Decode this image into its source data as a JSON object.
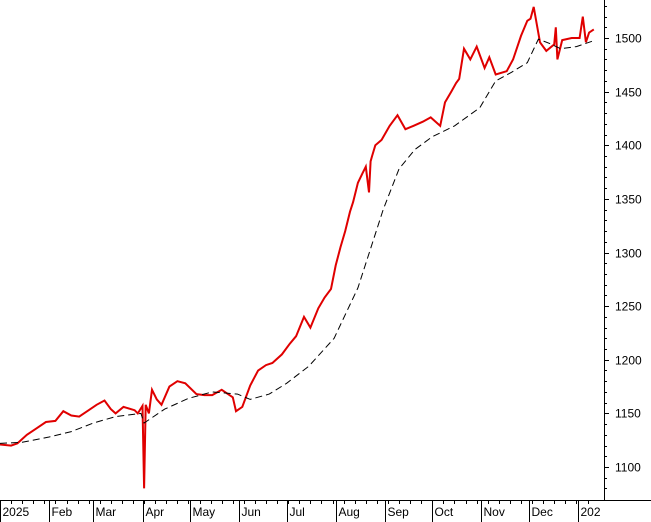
{
  "chart_data": {
    "type": "line",
    "title": "",
    "xlabel": "",
    "ylabel": "",
    "ylim": [
      1075,
      1535
    ],
    "x_range": [
      "2025-01-01",
      "2026-01-12"
    ],
    "y_ticks": [
      1100,
      1150,
      1200,
      1250,
      1300,
      1350,
      1400,
      1450,
      1500
    ],
    "x_ticks": [
      {
        "date": "2025-01-01",
        "label": "2025"
      },
      {
        "date": "2025-02-01",
        "label": "Feb"
      },
      {
        "date": "2025-03-01",
        "label": "Mar"
      },
      {
        "date": "2025-04-01",
        "label": "Apr"
      },
      {
        "date": "2025-05-01",
        "label": "May"
      },
      {
        "date": "2025-06-01",
        "label": "Jun"
      },
      {
        "date": "2025-07-01",
        "label": "Jul"
      },
      {
        "date": "2025-08-01",
        "label": "Aug"
      },
      {
        "date": "2025-09-01",
        "label": "Sep"
      },
      {
        "date": "2025-10-01",
        "label": "Oct"
      },
      {
        "date": "2025-11-01",
        "label": "Nov"
      },
      {
        "date": "2025-12-01",
        "label": "Dec"
      },
      {
        "date": "2026-01-01",
        "label": "202"
      }
    ],
    "grid": false,
    "legend": "none",
    "colors": {
      "price": "#e00000",
      "moving_average": "#000000"
    },
    "series": [
      {
        "style": "solid",
        "color": "#e00000",
        "x": [
          "2025-01-01",
          "2025-01-08",
          "2025-01-12",
          "2025-01-18",
          "2025-01-24",
          "2025-01-30",
          "2025-02-05",
          "2025-02-10",
          "2025-02-15",
          "2025-02-20",
          "2025-02-26",
          "2025-03-03",
          "2025-03-08",
          "2025-03-12",
          "2025-03-15",
          "2025-03-20",
          "2025-03-27",
          "2025-03-29",
          "2025-04-01",
          "2025-04-02",
          "2025-04-03",
          "2025-04-05",
          "2025-04-07",
          "2025-04-10",
          "2025-04-13",
          "2025-04-18",
          "2025-04-23",
          "2025-04-28",
          "2025-05-05",
          "2025-05-10",
          "2025-05-15",
          "2025-05-21",
          "2025-05-28",
          "2025-05-30",
          "2025-06-03",
          "2025-06-08",
          "2025-06-13",
          "2025-06-18",
          "2025-06-22",
          "2025-06-28",
          "2025-07-03",
          "2025-07-07",
          "2025-07-12",
          "2025-07-16",
          "2025-07-21",
          "2025-07-25",
          "2025-07-29",
          "2025-08-01",
          "2025-08-04",
          "2025-08-07",
          "2025-08-10",
          "2025-08-12",
          "2025-08-15",
          "2025-08-18",
          "2025-08-20",
          "2025-08-22",
          "2025-08-23",
          "2025-08-24",
          "2025-08-26",
          "2025-08-30",
          "2025-09-04",
          "2025-09-09",
          "2025-09-14",
          "2025-09-19",
          "2025-09-25",
          "2025-09-30",
          "2025-10-06",
          "2025-10-09",
          "2025-10-13",
          "2025-10-16",
          "2025-10-18",
          "2025-10-21",
          "2025-10-25",
          "2025-10-29",
          "2025-11-03",
          "2025-11-06",
          "2025-11-10",
          "2025-11-17",
          "2025-11-21",
          "2025-11-26",
          "2025-11-30",
          "2025-12-02",
          "2025-12-04",
          "2025-12-08",
          "2025-12-12",
          "2025-12-17",
          "2025-12-18",
          "2025-12-19",
          "2025-12-22",
          "2025-12-28",
          "2026-01-02",
          "2026-01-04",
          "2026-01-06",
          "2026-01-08",
          "2026-01-11"
        ],
        "y": [
          1121,
          1120,
          1122,
          1130,
          1136,
          1142,
          1143,
          1152,
          1148,
          1147,
          1153,
          1158,
          1162,
          1154,
          1150,
          1156,
          1153,
          1150,
          1157,
          1080,
          1158,
          1150,
          1172,
          1163,
          1158,
          1175,
          1180,
          1178,
          1168,
          1167,
          1167,
          1172,
          1165,
          1152,
          1156,
          1176,
          1190,
          1195,
          1197,
          1205,
          1215,
          1222,
          1240,
          1230,
          1248,
          1258,
          1266,
          1288,
          1305,
          1320,
          1338,
          1347,
          1365,
          1374,
          1380,
          1356,
          1385,
          1390,
          1400,
          1405,
          1418,
          1428,
          1415,
          1418,
          1422,
          1426,
          1418,
          1440,
          1450,
          1458,
          1462,
          1490,
          1480,
          1492,
          1472,
          1482,
          1466,
          1469,
          1480,
          1502,
          1516,
          1518,
          1529,
          1496,
          1488,
          1494,
          1510,
          1480,
          1498,
          1500,
          1500,
          1520,
          1496,
          1505,
          1508
        ]
      },
      {
        "style": "dashed",
        "color": "#000000",
        "x": [
          "2025-01-01",
          "2025-01-15",
          "2025-02-01",
          "2025-02-15",
          "2025-03-01",
          "2025-03-15",
          "2025-03-31",
          "2025-04-02",
          "2025-04-15",
          "2025-04-30",
          "2025-05-15",
          "2025-05-31",
          "2025-06-08",
          "2025-06-20",
          "2025-07-01",
          "2025-07-15",
          "2025-07-31",
          "2025-08-15",
          "2025-08-31",
          "2025-09-10",
          "2025-09-20",
          "2025-10-01",
          "2025-10-15",
          "2025-10-31",
          "2025-11-10",
          "2025-11-20",
          "2025-11-30",
          "2025-12-07",
          "2025-12-14",
          "2025-12-21",
          "2025-12-31",
          "2026-01-10"
        ],
        "y": [
          1122,
          1123,
          1128,
          1133,
          1141,
          1147,
          1150,
          1141,
          1154,
          1164,
          1170,
          1168,
          1163,
          1168,
          1178,
          1194,
          1220,
          1267,
          1340,
          1378,
          1396,
          1408,
          1418,
          1435,
          1460,
          1468,
          1477,
          1499,
          1495,
          1490,
          1492,
          1497
        ]
      }
    ]
  }
}
